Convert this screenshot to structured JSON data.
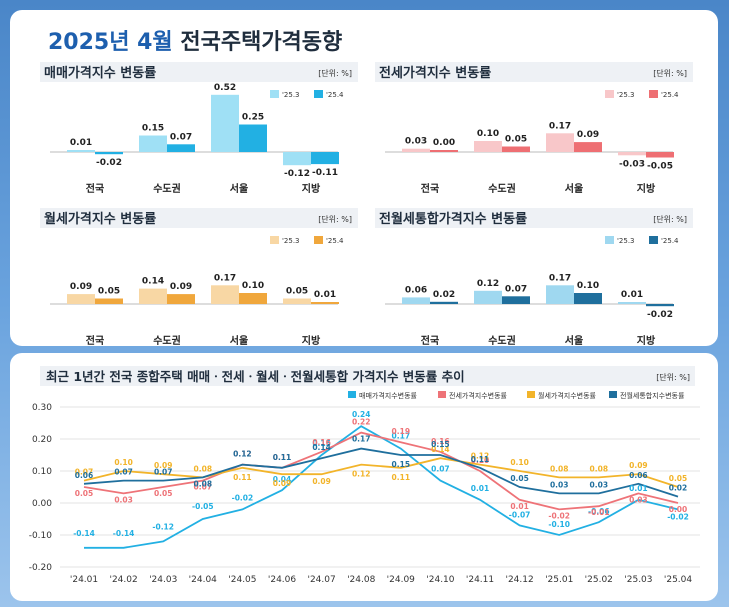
{
  "page_title": {
    "year": "2025년 4월",
    "rest": "전국주택가격동향"
  },
  "colors": {
    "sale": {
      "prev": "#9fe0f5",
      "curr": "#22b0e3"
    },
    "jeonse": {
      "prev": "#f8c7c9",
      "curr": "#ee6f73"
    },
    "rent": {
      "prev": "#f8d7a4",
      "curr": "#f0a73c"
    },
    "combined": {
      "prev": "#9fd8f0",
      "curr": "#1f6f9d"
    },
    "line_sale": "#22b0e3",
    "line_jeonse": "#ee7378",
    "line_rent": "#f2b42a",
    "line_combined": "#1f6f9d"
  },
  "chart_data": [
    {
      "type": "bar",
      "title": "매매가격지수 변동률",
      "unit": "[단위: %]",
      "categories": [
        "전국",
        "수도권",
        "서울",
        "지방"
      ],
      "series": [
        {
          "name": "'25.3",
          "values": [
            0.01,
            0.15,
            0.52,
            -0.12
          ]
        },
        {
          "name": "'25.4",
          "values": [
            -0.02,
            0.07,
            0.25,
            -0.11
          ]
        }
      ]
    },
    {
      "type": "bar",
      "title": "전세가격지수 변동률",
      "unit": "[단위: %]",
      "categories": [
        "전국",
        "수도권",
        "서울",
        "지방"
      ],
      "series": [
        {
          "name": "'25.3",
          "values": [
            0.03,
            0.1,
            0.17,
            -0.03
          ]
        },
        {
          "name": "'25.4",
          "values": [
            0.0,
            0.05,
            0.09,
            -0.05
          ]
        }
      ]
    },
    {
      "type": "bar",
      "title": "월세가격지수 변동률",
      "unit": "[단위: %]",
      "categories": [
        "전국",
        "수도권",
        "서울",
        "지방"
      ],
      "series": [
        {
          "name": "'25.3",
          "values": [
            0.09,
            0.14,
            0.17,
            0.05
          ]
        },
        {
          "name": "'25.4",
          "values": [
            0.05,
            0.09,
            0.1,
            0.01
          ]
        }
      ]
    },
    {
      "type": "bar",
      "title": "전월세통합가격지수 변동률",
      "unit": "[단위: %]",
      "categories": [
        "전국",
        "수도권",
        "서울",
        "지방"
      ],
      "series": [
        {
          "name": "'25.3",
          "values": [
            0.06,
            0.12,
            0.17,
            0.01
          ]
        },
        {
          "name": "'25.4",
          "values": [
            0.02,
            0.07,
            0.1,
            -0.02
          ]
        }
      ]
    },
    {
      "type": "line",
      "title": "최근 1년간 전국 종합주택 매매ㆍ전세ㆍ월세ㆍ전월세통합 가격지수 변동률 추이",
      "unit": "[단위: %]",
      "x": [
        "'24.01",
        "'24.02",
        "'24.03",
        "'24.04",
        "'24.05",
        "'24.06",
        "'24.07",
        "'24.08",
        "'24.09",
        "'24.10",
        "'24.11",
        "'24.12",
        "'25.01",
        "'25.02",
        "'25.03",
        "'25.04"
      ],
      "ylim": [
        -0.2,
        0.3
      ],
      "yticks": [
        "0.30",
        "0.20",
        "0.10",
        "0.00",
        "-0.10",
        "-0.20"
      ],
      "series": [
        {
          "name": "매매가격지수변동률",
          "values": [
            -0.14,
            -0.14,
            -0.12,
            -0.05,
            -0.02,
            0.04,
            0.15,
            0.24,
            0.17,
            0.07,
            0.01,
            -0.07,
            -0.1,
            -0.06,
            0.01,
            -0.02
          ]
        },
        {
          "name": "전세가격지수변동률",
          "values": [
            0.05,
            0.03,
            0.05,
            0.07,
            0.12,
            0.11,
            0.16,
            0.22,
            0.19,
            0.16,
            0.1,
            0.01,
            -0.02,
            -0.01,
            0.03,
            0.0
          ]
        },
        {
          "name": "월세가격지수변동률",
          "values": [
            0.07,
            0.1,
            0.09,
            0.08,
            0.11,
            0.09,
            0.09,
            0.12,
            0.11,
            0.14,
            0.12,
            0.1,
            0.08,
            0.08,
            0.09,
            0.05
          ]
        },
        {
          "name": "전월세통합지수변동률",
          "values": [
            0.06,
            0.07,
            0.07,
            0.08,
            0.12,
            0.11,
            0.14,
            0.17,
            0.15,
            0.15,
            0.11,
            0.05,
            0.03,
            0.03,
            0.06,
            0.02
          ]
        }
      ]
    }
  ]
}
